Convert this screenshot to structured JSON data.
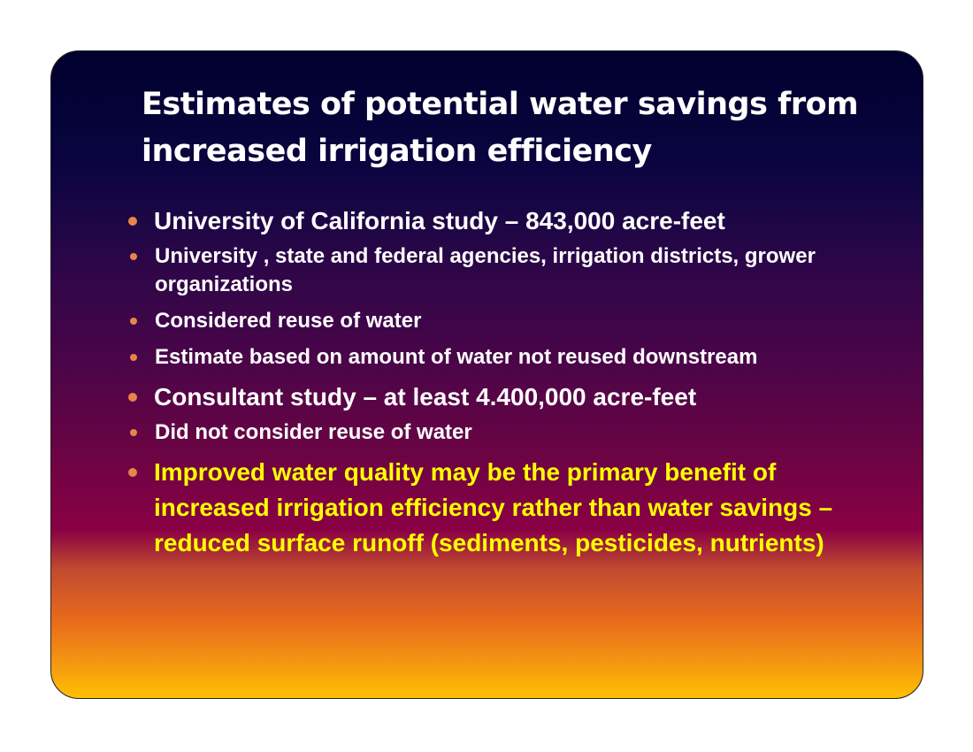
{
  "header": {
    "title": "Estimates of potential water savings from increased irrigation efficiency"
  },
  "bullets": [
    {
      "text": "University of California study – 843,000 acre-feet",
      "sub": [
        "University , state and federal agencies, irrigation districts, grower organizations",
        "Considered reuse of water",
        "Estimate based on amount of water not reused downstream"
      ]
    },
    {
      "text": "Consultant study – at least 4.400,000 acre-feet",
      "sub": [
        "Did not consider  reuse of water"
      ]
    },
    {
      "text": "Improved water quality may be the primary benefit of increased irrigation efficiency rather than water savings – reduced surface runoff (sediments, pesticides, nutrients)",
      "sub": []
    }
  ]
}
